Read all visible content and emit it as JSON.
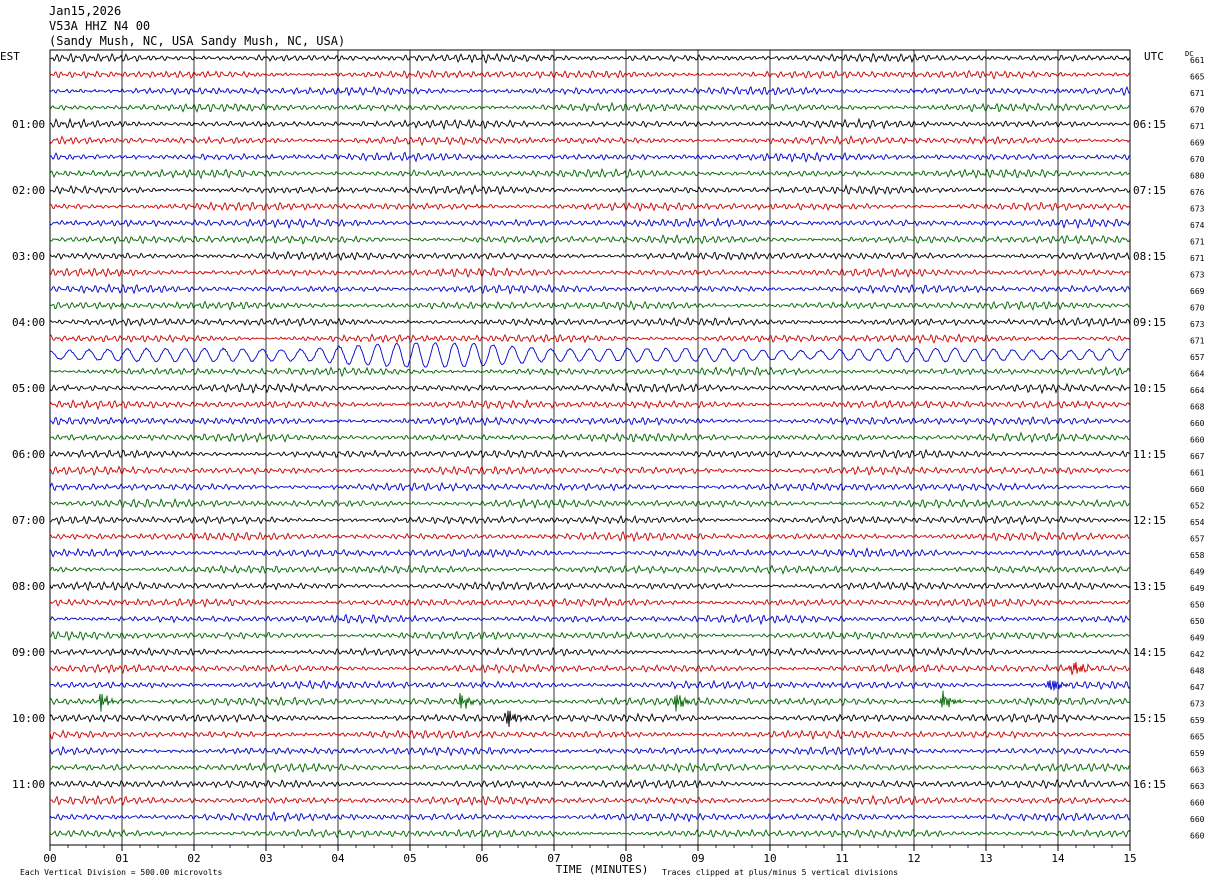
{
  "header": {
    "date": "Jan15,2026",
    "station": "V53A HHZ N4 00",
    "location": "(Sandy Mush, NC, USA Sandy Mush, NC, USA)"
  },
  "chart_data": {
    "type": "line",
    "left_timezone": "EST",
    "right_timezone": "UTC",
    "dc_label": "DC",
    "xlabel": "TIME (MINUTES)",
    "xlim": [
      0,
      15
    ],
    "x_ticks": [
      "00",
      "01",
      "02",
      "03",
      "04",
      "05",
      "06",
      "07",
      "08",
      "09",
      "10",
      "11",
      "12",
      "13",
      "14",
      "15"
    ],
    "left_hour_labels": [
      "01:00",
      "02:00",
      "03:00",
      "04:00",
      "05:00",
      "06:00",
      "07:00",
      "08:00",
      "09:00",
      "10:00",
      "11:00"
    ],
    "right_hour_labels": [
      "06:15",
      "07:15",
      "08:15",
      "09:15",
      "10:15",
      "11:15",
      "12:15",
      "13:15",
      "14:15",
      "15:15",
      "16:15"
    ],
    "trace_colors": [
      "#000000",
      "#cc0000",
      "#0000cc",
      "#006600"
    ],
    "dc_offsets": [
      661,
      665,
      671,
      670,
      671,
      669,
      670,
      680,
      676,
      673,
      674,
      671,
      671,
      673,
      669,
      670,
      673,
      671,
      657,
      664,
      664,
      668,
      660,
      660,
      667,
      661,
      660,
      652,
      654,
      657,
      658,
      649,
      649,
      650,
      650,
      649,
      642,
      648,
      647,
      673,
      659,
      665,
      659,
      663,
      663,
      660,
      660,
      660
    ],
    "footer_left": "Each Vertical Division =  500.00 microvolts",
    "footer_right": "Traces clipped at plus/minus 5 vertical divisions",
    "events": [
      {
        "trace": 18,
        "type": "long-period surface waves",
        "x_start": 0,
        "x_end": 15
      },
      {
        "trace": 37,
        "x_minutes": 14.2
      },
      {
        "trace": 38,
        "x_minutes": 13.9
      },
      {
        "trace": 39,
        "x_minutes": 0.7
      },
      {
        "trace": 39,
        "x_minutes": 5.7
      },
      {
        "trace": 39,
        "x_minutes": 8.7
      },
      {
        "trace": 39,
        "x_minutes": 12.4
      },
      {
        "trace": 40,
        "x_minutes": 6.35
      }
    ]
  }
}
